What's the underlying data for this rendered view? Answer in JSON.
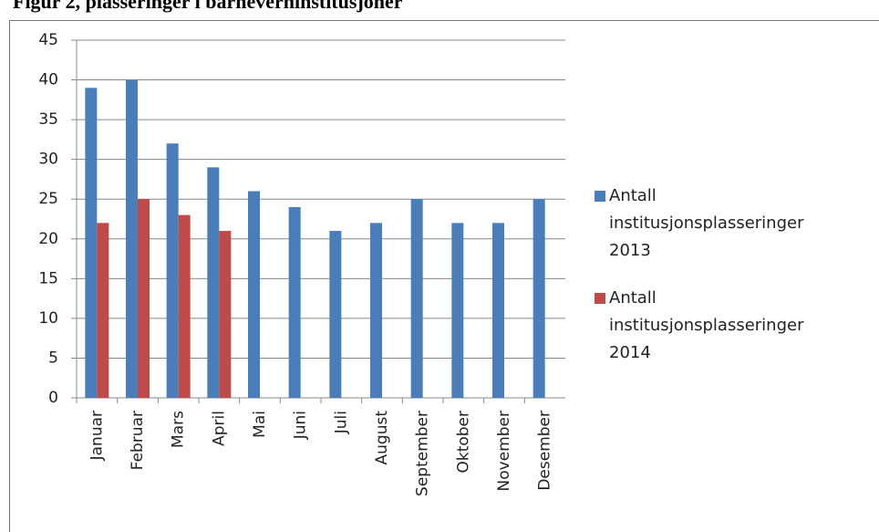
{
  "chart_data": {
    "type": "bar",
    "title": "Figur 2, plasseringer i barneverninstitusjoner",
    "categories": [
      "Januar",
      "Februar",
      "Mars",
      "April",
      "Mai",
      "Juni",
      "Juli",
      "August",
      "September",
      "Oktober",
      "November",
      "Desember"
    ],
    "series": [
      {
        "name": "Antall institusjonsplasseringer 2013",
        "color": "#4a7ebb",
        "values": [
          39,
          40,
          32,
          29,
          26,
          24,
          21,
          22,
          25,
          22,
          22,
          25
        ]
      },
      {
        "name": "Antall institusjonsplasseringer 2014",
        "color": "#be4b48",
        "values": [
          22,
          25,
          23,
          21,
          null,
          null,
          null,
          null,
          null,
          null,
          null,
          null
        ]
      }
    ],
    "ylim": [
      0,
      45
    ],
    "yticks": [
      0,
      5,
      10,
      15,
      20,
      25,
      30,
      35,
      40,
      45
    ],
    "grid": true
  }
}
